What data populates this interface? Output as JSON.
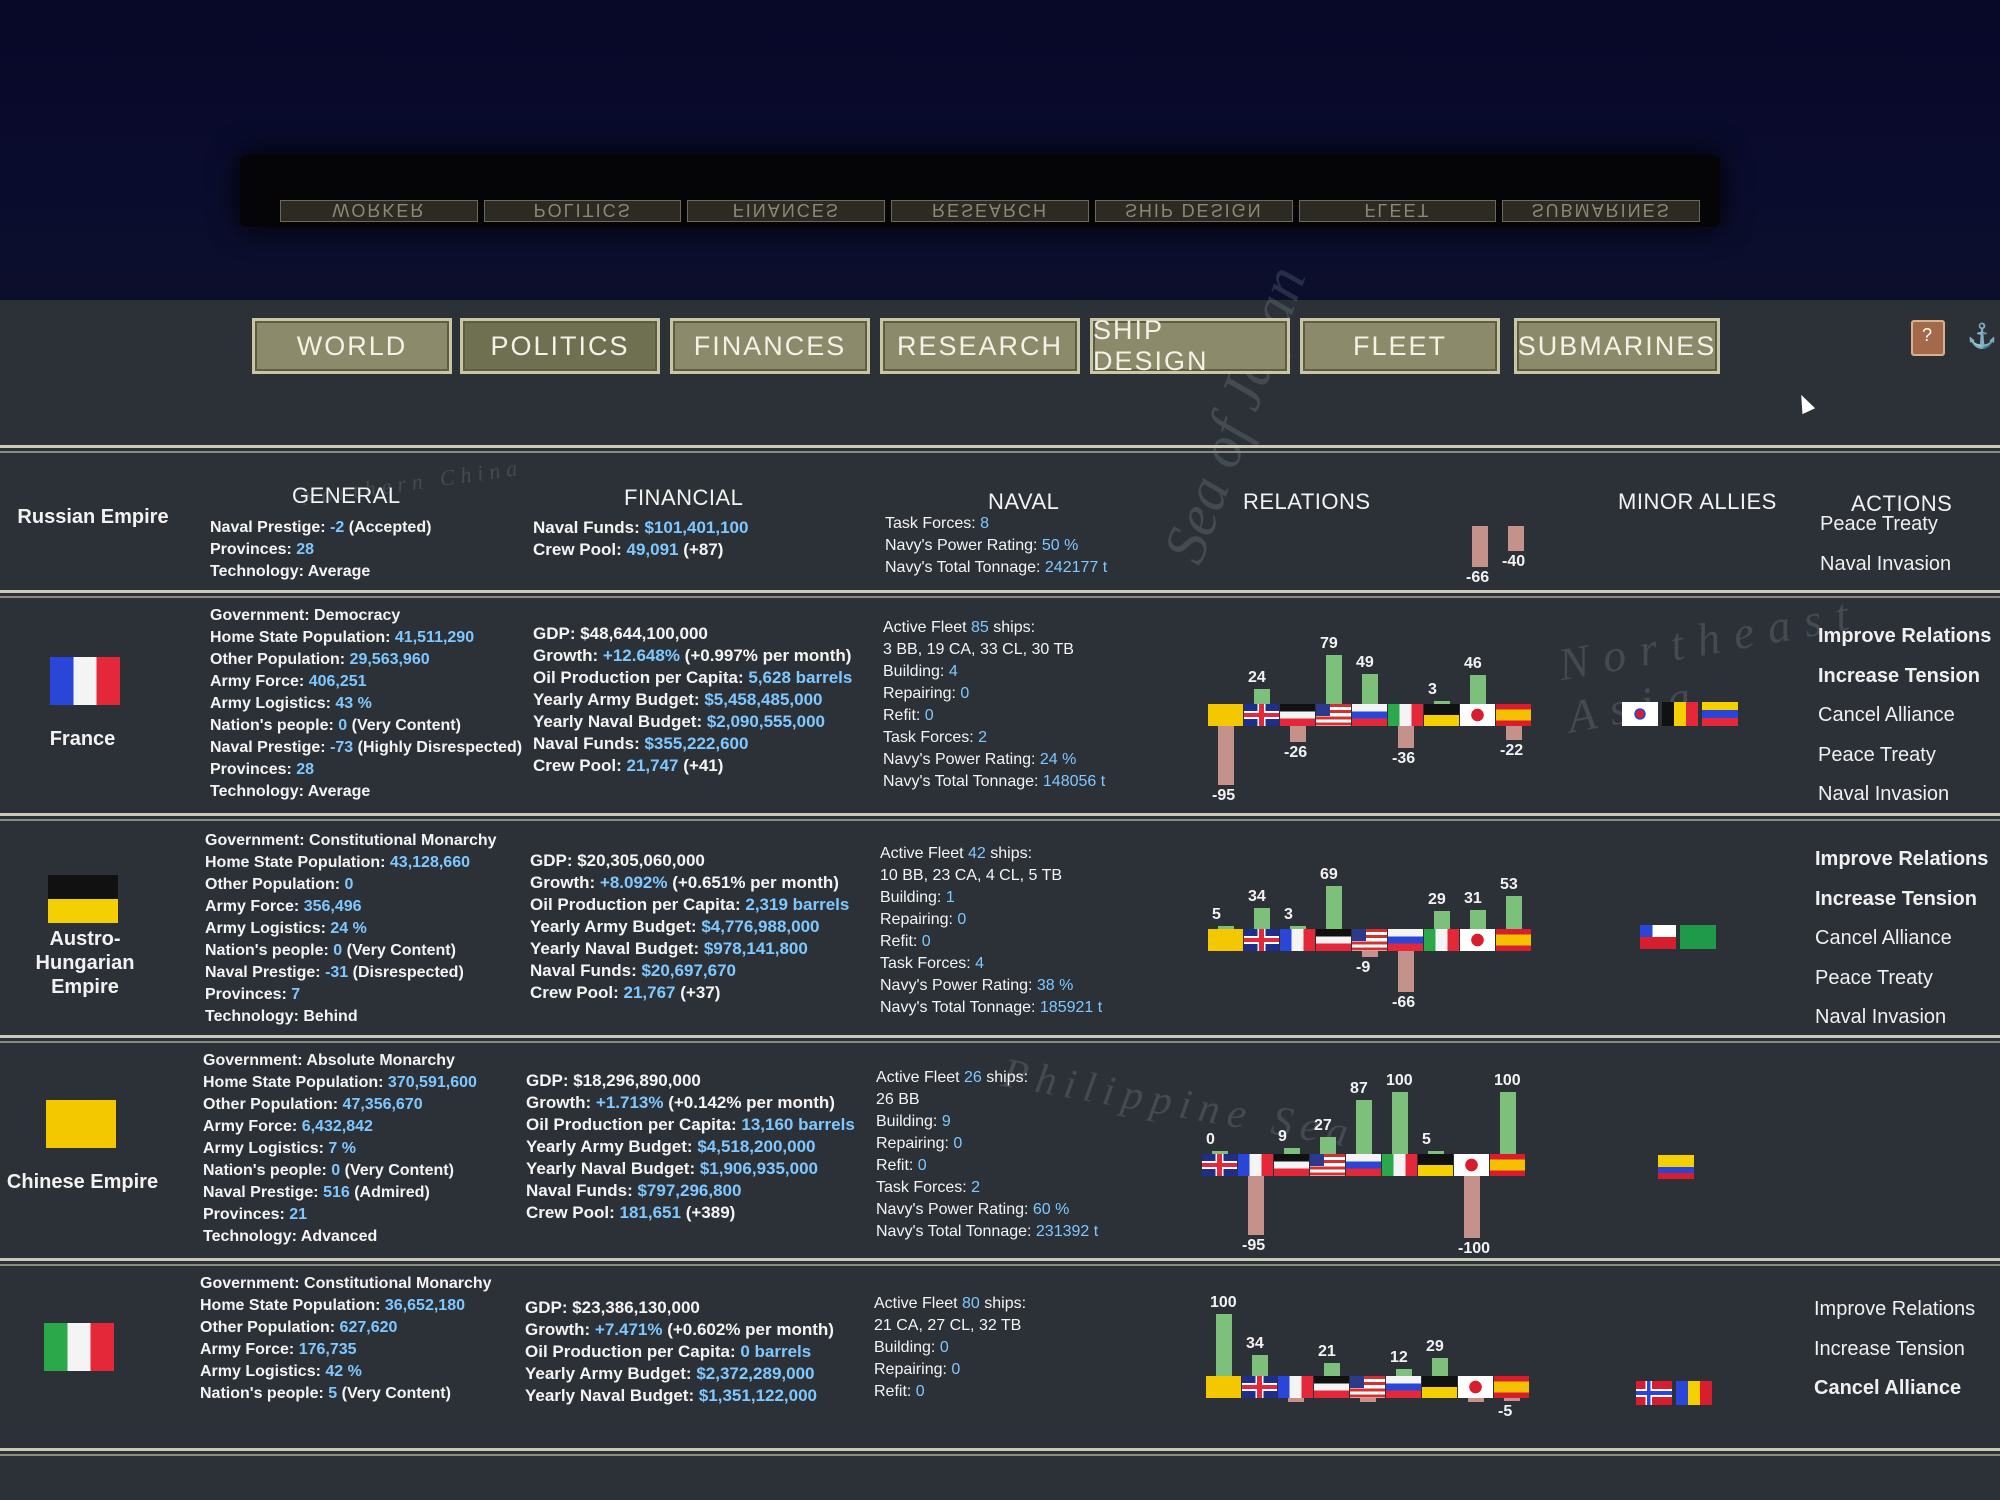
{
  "reflection_tabs": [
    "WORKER",
    "POLITICS",
    "FINANCES",
    "RESEARCH",
    "SHIP DESIGN",
    "FLEET",
    "SUBMARINES"
  ],
  "tabs": [
    {
      "label": "WORLD",
      "active": false
    },
    {
      "label": "POLITICS",
      "active": true
    },
    {
      "label": "FINANCES",
      "active": false
    },
    {
      "label": "RESEARCH",
      "active": false
    },
    {
      "label": "SHIP DESIGN",
      "active": false
    },
    {
      "label": "FLEET",
      "active": false
    },
    {
      "label": "SUBMARINES",
      "active": false
    }
  ],
  "map_labels": [
    "Sea of Japan",
    "Northeast Asia",
    "Philippine Sea",
    "Northern China"
  ],
  "headers": {
    "general": "GENERAL",
    "financial": "FINANCIAL",
    "naval": "NAVAL",
    "relations": "RELATIONS",
    "minor_allies": "MINOR ALLIES",
    "actions": "ACTIONS"
  },
  "relation_order_note": "",
  "rows": [
    {
      "country": "Russian Empire",
      "flag": "none",
      "general": [
        {
          "k": "Naval Prestige: ",
          "v": "-2",
          "s": " (Accepted)"
        },
        {
          "k": "Provinces: ",
          "v": "28",
          "s": ""
        },
        {
          "k": "Technology: Average",
          "v": "",
          "s": ""
        }
      ],
      "financial": [
        {
          "k": "Naval Funds: ",
          "v": "$101,401,100",
          "s": ""
        },
        {
          "k": "Crew Pool: ",
          "v": "49,091",
          "s": " (+87)"
        }
      ],
      "naval": [
        {
          "k": "Task Forces: ",
          "v": "8",
          "s": ""
        },
        {
          "k": "Navy's Power Rating: ",
          "v": "50 %",
          "s": ""
        },
        {
          "k": "Navy's Total Tonnage: ",
          "v": "242177 t",
          "s": ""
        }
      ],
      "relations": [
        {
          "label": "-66",
          "value": -66,
          "slot": 7
        },
        {
          "label": "-40",
          "value": -40,
          "slot": 8
        }
      ],
      "minor_allies": [],
      "actions": [
        {
          "label": "Peace Treaty",
          "hi": false
        },
        {
          "label": "Naval Invasion",
          "hi": false
        }
      ]
    },
    {
      "country": "France",
      "flag": "france",
      "general": [
        {
          "k": "Government: Democracy",
          "v": "",
          "s": ""
        },
        {
          "k": "Home State Population: ",
          "v": "41,511,290",
          "s": ""
        },
        {
          "k": "Other Population: ",
          "v": "29,563,960",
          "s": ""
        },
        {
          "k": "Army Force: ",
          "v": "406,251",
          "s": ""
        },
        {
          "k": "Army Logistics: ",
          "v": "43 %",
          "s": ""
        },
        {
          "k": "Nation's people: ",
          "v": "0",
          "s": " (Very Content)"
        },
        {
          "k": "Naval Prestige: ",
          "v": "-73",
          "s": " (Highly Disrespected)"
        },
        {
          "k": "Provinces: ",
          "v": "28",
          "s": ""
        },
        {
          "k": "Technology: Average",
          "v": "",
          "s": ""
        }
      ],
      "financial": [
        {
          "k": "GDP: $48,644,100,000",
          "v": "",
          "s": ""
        },
        {
          "k": "Growth: ",
          "v": "+12.648%",
          "s": " (+0.997% per month)"
        },
        {
          "k": "Oil Production per Capita: ",
          "v": "5,628 barrels",
          "s": ""
        },
        {
          "k": "Yearly Army Budget: ",
          "v": "$5,458,485,000",
          "s": ""
        },
        {
          "k": "Yearly Naval Budget: ",
          "v": "$2,090,555,000",
          "s": ""
        },
        {
          "k": "Naval Funds: ",
          "v": "$355,222,600",
          "s": ""
        },
        {
          "k": "Crew Pool: ",
          "v": "21,747",
          "s": " (+41)"
        }
      ],
      "naval": [
        {
          "k": "Active Fleet ",
          "v": "85",
          "s": " ships:"
        },
        {
          "k": "3 BB, 19 CA, 33 CL, 30 TB",
          "v": "",
          "s": ""
        },
        {
          "k": "Building: ",
          "v": "4",
          "s": ""
        },
        {
          "k": "Repairing: ",
          "v": "0",
          "s": ""
        },
        {
          "k": "Refit: ",
          "v": "0",
          "s": ""
        },
        {
          "k": "Task Forces: ",
          "v": "2",
          "s": ""
        },
        {
          "k": "Navy's Power Rating: ",
          "v": "24 %",
          "s": ""
        },
        {
          "k": "Navy's Total Tonnage: ",
          "v": "148056 t",
          "s": ""
        }
      ],
      "relation_flags": [
        "china",
        "uk",
        "germany",
        "usa",
        "russia",
        "italy",
        "austria",
        "japan",
        "spain"
      ],
      "relations": [
        {
          "label": "-95",
          "value": -95,
          "slot": 0
        },
        {
          "label": "24",
          "value": 24,
          "slot": 1
        },
        {
          "label": "-26",
          "value": -26,
          "slot": 2
        },
        {
          "label": "79",
          "value": 79,
          "slot": 3
        },
        {
          "label": "49",
          "value": 49,
          "slot": 4
        },
        {
          "label": "-36",
          "value": -36,
          "slot": 5
        },
        {
          "label": "3",
          "value": 3,
          "slot": 6
        },
        {
          "label": "46",
          "value": 46,
          "slot": 7
        },
        {
          "label": "-22",
          "value": -22,
          "slot": 8
        }
      ],
      "minor_allies": [
        "korea",
        "belgium",
        "venezuela"
      ],
      "actions": [
        {
          "label": "Improve Relations",
          "hi": true
        },
        {
          "label": "Increase Tension",
          "hi": true
        },
        {
          "label": "Cancel Alliance",
          "hi": false
        },
        {
          "label": "Peace Treaty",
          "hi": false
        },
        {
          "label": "Naval Invasion",
          "hi": false
        }
      ]
    },
    {
      "country": "Austro-Hungarian Empire",
      "country_lines": [
        "Austro-",
        "Hungarian",
        "Empire"
      ],
      "flag": "austria",
      "general": [
        {
          "k": "Government: Constitutional Monarchy",
          "v": "",
          "s": ""
        },
        {
          "k": "Home State Population: ",
          "v": "43,128,660",
          "s": ""
        },
        {
          "k": "Other Population: ",
          "v": "0",
          "s": ""
        },
        {
          "k": "Army Force: ",
          "v": "356,496",
          "s": ""
        },
        {
          "k": "Army Logistics: ",
          "v": "24 %",
          "s": ""
        },
        {
          "k": "Nation's people: ",
          "v": "0",
          "s": " (Very Content)"
        },
        {
          "k": "Naval Prestige: ",
          "v": "-31",
          "s": " (Disrespected)"
        },
        {
          "k": "Provinces: ",
          "v": "7",
          "s": ""
        },
        {
          "k": "Technology: Behind",
          "v": "",
          "s": ""
        }
      ],
      "financial": [
        {
          "k": "GDP: $20,305,060,000",
          "v": "",
          "s": ""
        },
        {
          "k": "Growth: ",
          "v": "+8.092%",
          "s": " (+0.651% per month)"
        },
        {
          "k": "Oil Production per Capita: ",
          "v": "2,319 barrels",
          "s": ""
        },
        {
          "k": "Yearly Army Budget: ",
          "v": "$4,776,988,000",
          "s": ""
        },
        {
          "k": "Yearly Naval Budget: ",
          "v": "$978,141,800",
          "s": ""
        },
        {
          "k": "Naval Funds: ",
          "v": "$20,697,670",
          "s": ""
        },
        {
          "k": "Crew Pool: ",
          "v": "21,767",
          "s": " (+37)"
        }
      ],
      "naval": [
        {
          "k": "Active Fleet ",
          "v": "42",
          "s": " ships:"
        },
        {
          "k": "10 BB, 23 CA, 4 CL, 5 TB",
          "v": "",
          "s": ""
        },
        {
          "k": "Building: ",
          "v": "1",
          "s": ""
        },
        {
          "k": "Repairing: ",
          "v": "0",
          "s": ""
        },
        {
          "k": "Refit: ",
          "v": "0",
          "s": ""
        },
        {
          "k": "Task Forces: ",
          "v": "4",
          "s": ""
        },
        {
          "k": "Navy's Power Rating: ",
          "v": "38 %",
          "s": ""
        },
        {
          "k": "Navy's Total Tonnage: ",
          "v": "185921 t",
          "s": ""
        }
      ],
      "relation_flags": [
        "china",
        "uk",
        "france",
        "germany",
        "usa",
        "russia",
        "italy",
        "japan",
        "spain"
      ],
      "relations": [
        {
          "label": "5",
          "value": 5,
          "slot": 0
        },
        {
          "label": "34",
          "value": 34,
          "slot": 1
        },
        {
          "label": "3",
          "value": 3,
          "slot": 2
        },
        {
          "label": "69",
          "value": 69,
          "slot": 3
        },
        {
          "label": "-9",
          "value": -9,
          "slot": 4
        },
        {
          "label": "-66",
          "value": -66,
          "slot": 5
        },
        {
          "label": "29",
          "value": 29,
          "slot": 6
        },
        {
          "label": "31",
          "value": 31,
          "slot": 7
        },
        {
          "label": "53",
          "value": 53,
          "slot": 8
        }
      ],
      "minor_allies": [
        "chile",
        "saudi"
      ],
      "actions": [
        {
          "label": "Improve Relations",
          "hi": true
        },
        {
          "label": "Increase Tension",
          "hi": true
        },
        {
          "label": "Cancel Alliance",
          "hi": false
        },
        {
          "label": "Peace Treaty",
          "hi": false
        },
        {
          "label": "Naval Invasion",
          "hi": false
        }
      ]
    },
    {
      "country": "Chinese Empire",
      "flag": "china",
      "general": [
        {
          "k": "Government: Absolute Monarchy",
          "v": "",
          "s": ""
        },
        {
          "k": "Home State Population: ",
          "v": "370,591,600",
          "s": ""
        },
        {
          "k": "Other Population: ",
          "v": "47,356,670",
          "s": ""
        },
        {
          "k": "Army Force: ",
          "v": "6,432,842",
          "s": ""
        },
        {
          "k": "Army Logistics: ",
          "v": "7 %",
          "s": ""
        },
        {
          "k": "Nation's people: ",
          "v": "0",
          "s": " (Very Content)"
        },
        {
          "k": "Naval Prestige: ",
          "v": "516",
          "s": " (Admired)"
        },
        {
          "k": "Provinces: ",
          "v": "21",
          "s": ""
        },
        {
          "k": "Technology: Advanced",
          "v": "",
          "s": ""
        }
      ],
      "financial": [
        {
          "k": "GDP: $18,296,890,000",
          "v": "",
          "s": ""
        },
        {
          "k": "Growth: ",
          "v": "+1.713%",
          "s": " (+0.142% per month)"
        },
        {
          "k": "Oil Production per Capita: ",
          "v": "13,160 barrels",
          "s": ""
        },
        {
          "k": "Yearly Army Budget: ",
          "v": "$4,518,200,000",
          "s": ""
        },
        {
          "k": "Yearly Naval Budget: ",
          "v": "$1,906,935,000",
          "s": ""
        },
        {
          "k": "Naval Funds: ",
          "v": "$797,296,800",
          "s": ""
        },
        {
          "k": "Crew Pool: ",
          "v": "181,651",
          "s": " (+389)"
        }
      ],
      "naval": [
        {
          "k": "Active Fleet ",
          "v": "26",
          "s": " ships:"
        },
        {
          "k": "26 BB",
          "v": "",
          "s": ""
        },
        {
          "k": "Building: ",
          "v": "9",
          "s": ""
        },
        {
          "k": "Repairing: ",
          "v": "0",
          "s": ""
        },
        {
          "k": "Refit: ",
          "v": "0",
          "s": ""
        },
        {
          "k": "Task Forces: ",
          "v": "2",
          "s": ""
        },
        {
          "k": "Navy's Power Rating: ",
          "v": "60 %",
          "s": ""
        },
        {
          "k": "Navy's Total Tonnage: ",
          "v": "231392 t",
          "s": ""
        }
      ],
      "relation_flags": [
        "uk",
        "france",
        "germany",
        "usa",
        "russia",
        "italy",
        "austria",
        "japan",
        "spain"
      ],
      "relations": [
        {
          "label": "0",
          "value": 0,
          "slot": 0
        },
        {
          "label": "-95",
          "value": -95,
          "slot": 1
        },
        {
          "label": "9",
          "value": 9,
          "slot": 2
        },
        {
          "label": "27",
          "value": 27,
          "slot": 3
        },
        {
          "label": "87",
          "value": 87,
          "slot": 4
        },
        {
          "label": "100",
          "value": 100,
          "slot": 5
        },
        {
          "label": "5",
          "value": 5,
          "slot": 6
        },
        {
          "label": "-100",
          "value": -100,
          "slot": 7
        },
        {
          "label": "100",
          "value": 100,
          "slot": 8
        }
      ],
      "minor_allies": [
        "colombia"
      ],
      "actions": []
    },
    {
      "country": "",
      "flag": "italy",
      "general": [
        {
          "k": "Government: Constitutional Monarchy",
          "v": "",
          "s": ""
        },
        {
          "k": "Home State Population: ",
          "v": "36,652,180",
          "s": ""
        },
        {
          "k": "Other Population: ",
          "v": "627,620",
          "s": ""
        },
        {
          "k": "Army Force: ",
          "v": "176,735",
          "s": ""
        },
        {
          "k": "Army Logistics: ",
          "v": "42 %",
          "s": ""
        },
        {
          "k": "Nation's people: ",
          "v": "5",
          "s": " (Very Content)"
        }
      ],
      "financial": [
        {
          "k": "GDP: $23,386,130,000",
          "v": "",
          "s": ""
        },
        {
          "k": "Growth: ",
          "v": "+7.471%",
          "s": " (+0.602% per month)"
        },
        {
          "k": "Oil Production per Capita: ",
          "v": "0 barrels",
          "s": ""
        },
        {
          "k": "Yearly Army Budget: ",
          "v": "$2,372,289,000",
          "s": ""
        },
        {
          "k": "Yearly Naval Budget: ",
          "v": "$1,351,122,000",
          "s": ""
        }
      ],
      "naval": [
        {
          "k": "Active Fleet ",
          "v": "80",
          "s": " ships:"
        },
        {
          "k": "21 CA, 27 CL, 32 TB",
          "v": "",
          "s": ""
        },
        {
          "k": "Building: ",
          "v": "0",
          "s": ""
        },
        {
          "k": "Repairing: ",
          "v": "0",
          "s": ""
        },
        {
          "k": "Refit: ",
          "v": "0",
          "s": ""
        }
      ],
      "relation_flags": [
        "china",
        "uk",
        "france",
        "germany",
        "usa",
        "russia",
        "austria",
        "japan",
        "spain"
      ],
      "relations": [
        {
          "label": "100",
          "value": 100,
          "slot": 0
        },
        {
          "label": "34",
          "value": 34,
          "slot": 1
        },
        {
          "label": "",
          "value": -6,
          "slot": 2
        },
        {
          "label": "21",
          "value": 21,
          "slot": 3
        },
        {
          "label": "",
          "value": -6,
          "slot": 4
        },
        {
          "label": "12",
          "value": 12,
          "slot": 5
        },
        {
          "label": "29",
          "value": 29,
          "slot": 6
        },
        {
          "label": "",
          "value": -6,
          "slot": 7
        },
        {
          "label": "-5",
          "value": -5,
          "slot": 8
        }
      ],
      "minor_allies": [
        "norway",
        "romania"
      ],
      "actions": [
        {
          "label": "Improve Relations",
          "hi": false
        },
        {
          "label": "Increase Tension",
          "hi": false
        },
        {
          "label": "Cancel Alliance",
          "hi": true
        }
      ]
    }
  ]
}
